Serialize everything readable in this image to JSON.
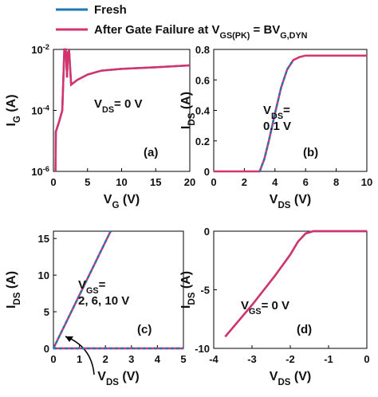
{
  "legend": [
    {
      "name": [
        "Fresh"
      ],
      "color": "#1f77b4"
    },
    {
      "name": [
        "After Gate Failure at V",
        "GS(PK)",
        " = BV",
        "G,DYN"
      ],
      "color": "#d6336c"
    }
  ],
  "chart_data": [
    {
      "type": "line",
      "log_y": true,
      "xlabel": [
        "V",
        "G",
        " (V)"
      ],
      "ylabel": [
        "I",
        "G",
        " (A)"
      ],
      "xlim": [
        0,
        20
      ],
      "xticks": [
        0,
        5,
        10,
        15,
        20
      ],
      "ylim": [
        1e-06,
        0.01
      ],
      "yticks": [
        {
          "value": 1e-06,
          "label": [
            "10",
            "-6"
          ]
        },
        {
          "value": 0.0001,
          "label": [
            "10",
            "-4"
          ]
        },
        {
          "value": 0.01,
          "label": [
            "10",
            "-2"
          ]
        }
      ],
      "annotations": [
        [
          [
            "(a)"
          ]
        ],
        [
          [
            "V",
            "DS",
            "= 0 V"
          ]
        ]
      ],
      "series": [
        {
          "color": "#1f77b4",
          "dashed": false,
          "x": [
            0.3,
            0.35,
            0.8,
            1.3,
            1.6,
            1.8,
            2.0,
            2.1,
            2.3,
            2.6,
            3.5,
            5,
            7,
            10,
            15,
            20
          ],
          "values": [
            1e-06,
            2e-05,
            4e-05,
            0.0001,
            0.01,
            0.01,
            0.0012,
            0.008,
            0.009,
            0.0007,
            0.001,
            0.0015,
            0.002,
            0.0023,
            0.0026,
            0.003
          ]
        },
        {
          "color": "#d6336c",
          "dashed": false,
          "x": [
            0.3,
            0.35,
            0.8,
            1.3,
            1.6,
            1.8,
            2.0,
            2.1,
            2.3,
            2.6,
            3.5,
            5,
            7,
            10,
            15,
            20
          ],
          "values": [
            1e-06,
            2e-05,
            4e-05,
            0.0001,
            0.01,
            0.01,
            0.0012,
            0.008,
            0.009,
            0.0007,
            0.001,
            0.0015,
            0.002,
            0.0023,
            0.0026,
            0.003
          ]
        }
      ]
    },
    {
      "type": "line",
      "log_y": false,
      "xlabel": [
        "V",
        "DS",
        " (V)"
      ],
      "ylabel": [
        "I",
        "DS",
        " (A)"
      ],
      "xlim": [
        0,
        10
      ],
      "xticks": [
        0,
        2,
        4,
        6,
        8,
        10
      ],
      "ylim": [
        0,
        0.8
      ],
      "yticks": [
        0,
        0.2,
        0.4,
        0.6,
        0.8
      ],
      "annotations": [
        [
          [
            "(b)"
          ]
        ],
        [
          [
            "V",
            "DS",
            "="
          ],
          [
            "0.1 V"
          ]
        ]
      ],
      "series": [
        {
          "color": "#d6336c",
          "dashed": false,
          "x": [
            0,
            3,
            3.3,
            3.6,
            4,
            4.4,
            4.8,
            5.2,
            5.6,
            6,
            7,
            8,
            9,
            10
          ],
          "values": [
            0,
            0,
            0.08,
            0.2,
            0.38,
            0.55,
            0.67,
            0.73,
            0.75,
            0.76,
            0.76,
            0.76,
            0.76,
            0.76
          ]
        },
        {
          "color": "#1f77b4",
          "dashed": true,
          "x": [
            3,
            3.3,
            3.6,
            4,
            4.4,
            4.8,
            5.2
          ],
          "values": [
            0,
            0.08,
            0.2,
            0.38,
            0.55,
            0.67,
            0.73
          ]
        }
      ]
    },
    {
      "type": "line",
      "log_y": false,
      "xlabel": [
        "V",
        "DS",
        " (V)"
      ],
      "ylabel": [
        "I",
        "DS",
        " (A)"
      ],
      "xlim": [
        0,
        5
      ],
      "xticks": [
        0,
        1,
        2,
        3,
        4,
        5
      ],
      "ylim": [
        0,
        16
      ],
      "yticks": [
        0,
        5,
        10,
        15
      ],
      "annotations": [
        [
          [
            "(c)"
          ]
        ],
        [
          [
            "V",
            "GS",
            "="
          ],
          [
            "2, 6, 10 V"
          ]
        ]
      ],
      "series": [
        {
          "color": "#d6336c",
          "dashed": false,
          "x": [
            0,
            5
          ],
          "values": [
            0,
            0
          ]
        },
        {
          "color": "#d6336c",
          "dashed": false,
          "x": [
            0,
            2.2
          ],
          "values": [
            0,
            16
          ]
        },
        {
          "color": "#1f77b4",
          "dashed": true,
          "x": [
            0,
            5
          ],
          "values": [
            0,
            0
          ]
        },
        {
          "color": "#1f77b4",
          "dashed": true,
          "x": [
            0,
            2.2
          ],
          "values": [
            0,
            16
          ]
        }
      ]
    },
    {
      "type": "line",
      "log_y": false,
      "xlabel": [
        "V",
        "DS",
        " (V)"
      ],
      "ylabel": [
        "I",
        "DS",
        " (A)"
      ],
      "xlim": [
        -4,
        0
      ],
      "xticks": [
        -4,
        -3,
        -2,
        -1,
        0
      ],
      "ylim": [
        -10,
        0
      ],
      "yticks": [
        -10,
        -5,
        0
      ],
      "annotations": [
        [
          [
            "(d)"
          ]
        ],
        [
          [
            "V",
            "GS",
            "= 0 V"
          ]
        ]
      ],
      "series": [
        {
          "color": "#1f77b4",
          "dashed": false,
          "x": [
            -3.7,
            -3.0,
            -2.4,
            -2.0,
            -1.8,
            -1.6,
            -1.4,
            -1.0,
            0
          ],
          "values": [
            -9,
            -6.3,
            -3.8,
            -2.0,
            -0.9,
            -0.2,
            0,
            0,
            0
          ]
        },
        {
          "color": "#d6336c",
          "dashed": false,
          "x": [
            -3.7,
            -3.0,
            -2.4,
            -2.0,
            -1.8,
            -1.6,
            -1.4,
            -1.0,
            0
          ],
          "values": [
            -9,
            -6.3,
            -3.8,
            -2.0,
            -0.9,
            -0.2,
            0,
            0,
            0
          ]
        }
      ]
    }
  ]
}
